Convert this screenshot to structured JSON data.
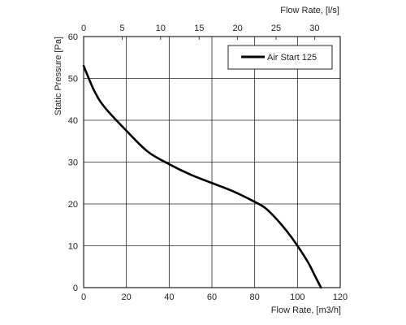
{
  "chart_data": {
    "type": "line",
    "title": "",
    "xlabel": "Flow Rate, [m3/h]",
    "x2label": "Flow Rate, [l/s]",
    "ylabel": "Static Pressure [Pa]",
    "xlim": [
      0,
      120
    ],
    "x2lim": [
      0,
      33.33
    ],
    "ylim": [
      0,
      60
    ],
    "x_ticks": [
      "0",
      "20",
      "40",
      "60",
      "80",
      "100",
      "120"
    ],
    "x_tick_values": [
      0,
      20,
      40,
      60,
      80,
      100,
      120
    ],
    "x2_ticks": [
      "0",
      "5",
      "10",
      "15",
      "20",
      "25",
      "30"
    ],
    "x2_tick_values": [
      0,
      5,
      10,
      15,
      20,
      25,
      30
    ],
    "y_ticks": [
      "0",
      "10",
      "20",
      "30",
      "40",
      "50",
      "60"
    ],
    "y_tick_values": [
      0,
      10,
      20,
      30,
      40,
      50,
      60
    ],
    "grid": true,
    "legend_position": "top-right",
    "series": [
      {
        "name": "Air Start 125",
        "color": "#000000",
        "x": [
          0,
          5,
          10,
          20,
          30,
          40,
          50,
          60,
          70,
          80,
          85,
          90,
          95,
          100,
          105,
          108,
          110,
          111
        ],
        "y": [
          53,
          47,
          43,
          37.5,
          32.5,
          29.5,
          27,
          25,
          23,
          20.5,
          19,
          16.5,
          13.5,
          10,
          6,
          3,
          1,
          0
        ]
      }
    ]
  }
}
